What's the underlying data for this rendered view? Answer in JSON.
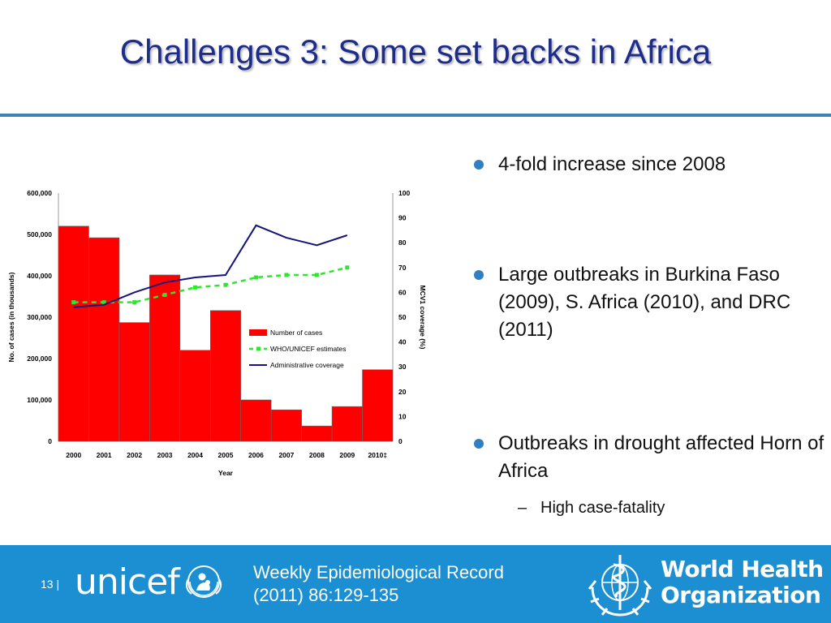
{
  "slide": {
    "title": "Challenges 3: Some set backs in Africa",
    "page_number": "13",
    "page_separator": "|"
  },
  "bullets": [
    {
      "text": "4-fold increase since 2008"
    },
    {
      "text": "Large outbreaks in Burkina Faso (2009), S. Africa (2010), and DRC (2011)"
    },
    {
      "text": "Outbreaks in drought affected Horn of Africa",
      "sub": [
        "High case-fatality"
      ]
    }
  ],
  "footer": {
    "unicef_logo_text": "unicef",
    "reference_line1": "Weekly Epidemiological Record",
    "reference_line2": "(2011) 86:129-135",
    "who_name_line1": "World Health",
    "who_name_line2": "Organization"
  },
  "colors": {
    "title": "#1f2d8a",
    "rule": "#3f82b5",
    "footer_bg": "#1b8fd1",
    "bullet_dot": "#2f7fc1",
    "bars": "#ff0000",
    "who_unicef_line": "#2ee62e",
    "admin_line": "#14147a"
  },
  "chart_data": {
    "type": "bar",
    "categories": [
      "2000",
      "2001",
      "2002",
      "2003",
      "2004",
      "2005",
      "2006",
      "2007",
      "2008",
      "2009",
      "2010‡"
    ],
    "xlabel": "Year",
    "ylabel": "No. of cases (in thousands)",
    "y2label": "MCV1   coverage (%)",
    "ylim": [
      0,
      600000
    ],
    "y2lim": [
      0,
      100
    ],
    "yticks": [
      "0",
      "100,000",
      "200,000",
      "300,000",
      "400,000",
      "500,000",
      "600,000"
    ],
    "y2ticks": [
      "0",
      "10",
      "20",
      "30",
      "40",
      "50",
      "60",
      "70",
      "80",
      "90",
      "100"
    ],
    "series": [
      {
        "name": "Number of cases",
        "type": "bar",
        "axis": "left",
        "values": [
          520000,
          492000,
          287000,
          402000,
          220000,
          316000,
          100000,
          76000,
          37000,
          84000,
          173000
        ]
      },
      {
        "name": "WHO/UNICEF estimates",
        "type": "line",
        "axis": "right",
        "style": "dashed",
        "values": [
          56,
          56,
          56,
          59,
          62,
          63,
          66,
          67,
          67,
          70,
          null
        ]
      },
      {
        "name": "Administrative coverage",
        "type": "line",
        "axis": "right",
        "style": "solid",
        "values": [
          54,
          55,
          60,
          64,
          66,
          67,
          87,
          82,
          79,
          83,
          null
        ]
      }
    ],
    "legend_position": "inside-center-right",
    "grid": false
  }
}
